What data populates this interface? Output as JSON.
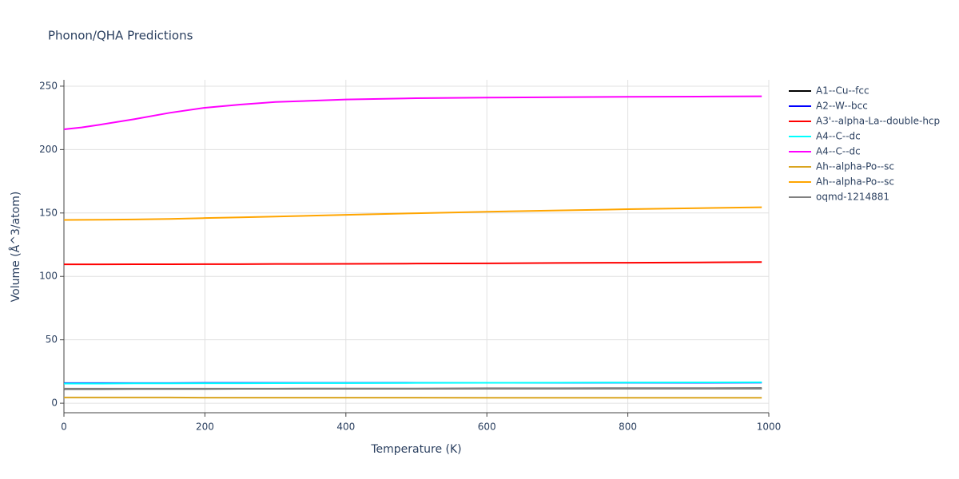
{
  "chart_data": {
    "type": "line",
    "title": "Phonon/QHA Predictions",
    "x_label": "Temperature (K)",
    "y_label": "Volume (Å^3/atom)",
    "x": [
      0,
      25,
      50,
      100,
      150,
      200,
      250,
      300,
      400,
      500,
      600,
      700,
      800,
      900,
      990
    ],
    "xlim": [
      0,
      1000
    ],
    "xticks": [
      0,
      200,
      400,
      600,
      800,
      1000
    ],
    "ylim": [
      -7.5,
      255
    ],
    "yticks": [
      0,
      50,
      100,
      150,
      200,
      250
    ],
    "grid": true,
    "legend": "right",
    "series": [
      {
        "name": "A1--Cu--fcc",
        "color": "#000000",
        "values": [
          11.2,
          11.2,
          11.2,
          11.3,
          11.3,
          11.3,
          11.4,
          11.4,
          11.5,
          11.5,
          11.6,
          11.6,
          11.7,
          11.7,
          11.8
        ]
      },
      {
        "name": "A2--W--bcc",
        "color": "#0000ff",
        "values": [
          15.9,
          15.9,
          15.9,
          15.9,
          15.9,
          16.0,
          16.0,
          16.0,
          16.0,
          16.1,
          16.1,
          16.1,
          16.2,
          16.2,
          16.3
        ]
      },
      {
        "name": "A3'--alpha-La--double-hcp",
        "color": "#ff0000",
        "values": [
          109.5,
          109.5,
          109.5,
          109.6,
          109.6,
          109.7,
          109.7,
          109.8,
          109.9,
          110.1,
          110.3,
          110.6,
          110.8,
          111.0,
          111.3
        ]
      },
      {
        "name": "A4--C--dc",
        "color": "#00ffff",
        "values": [
          15.5,
          15.5,
          15.5,
          15.6,
          15.6,
          15.7,
          15.7,
          15.8,
          15.9,
          16.0,
          16.1,
          16.2,
          16.3,
          16.4,
          16.5
        ]
      },
      {
        "name": "A4--C--dc",
        "color": "#ff00ff",
        "values": [
          216,
          217.5,
          219.5,
          224,
          229,
          233,
          235.5,
          237.5,
          239.5,
          240.5,
          241,
          241.3,
          241.6,
          241.8,
          242
        ]
      },
      {
        "name": "Ah--alpha-Po--sc",
        "color": "#daa520",
        "values": [
          4.5,
          4.5,
          4.5,
          4.5,
          4.5,
          4.4,
          4.4,
          4.4,
          4.4,
          4.4,
          4.3,
          4.3,
          4.3,
          4.3,
          4.3
        ]
      },
      {
        "name": "Ah--alpha-Po--sc",
        "color": "#ffa500",
        "values": [
          144.5,
          144.6,
          144.7,
          144.9,
          145.3,
          146,
          146.6,
          147.2,
          148.5,
          149.8,
          151,
          152,
          153,
          153.8,
          154.5
        ]
      },
      {
        "name": "oqmd-1214881",
        "color": "#808080",
        "values": [
          11.5,
          11.5,
          11.5,
          11.5,
          11.5,
          11.5,
          11.5,
          11.5,
          11.5,
          11.5,
          11.5,
          11.5,
          11.5,
          11.5,
          11.5
        ]
      }
    ]
  }
}
